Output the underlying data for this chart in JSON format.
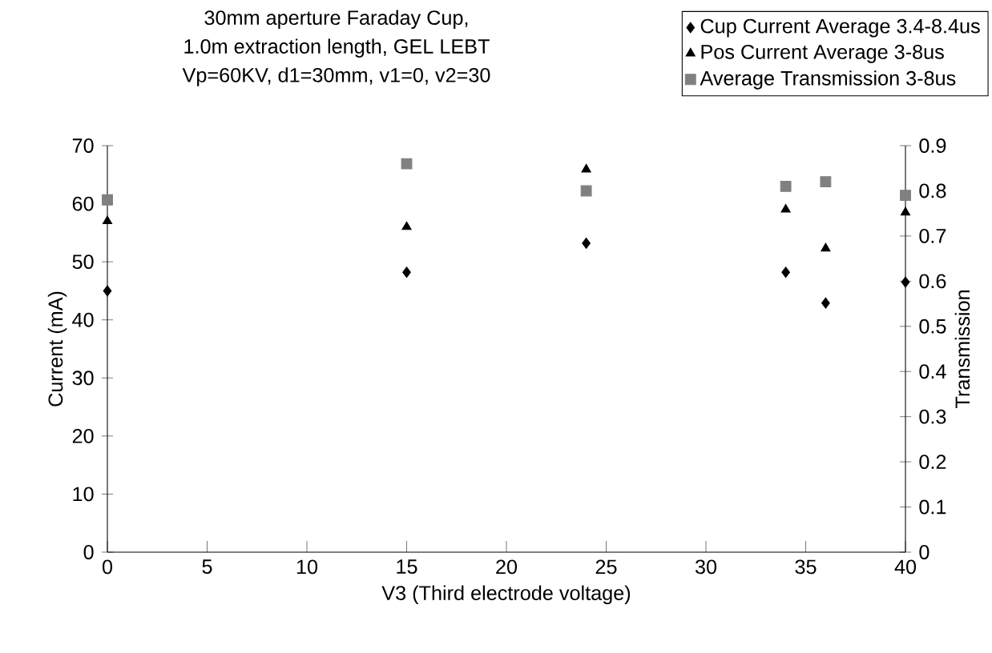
{
  "chart_data": {
    "type": "scatter",
    "title": "30mm aperture Faraday Cup,\n1.0m extraction length, GEL LEBT\nVp=60KV, d1=30mm, v1=0, v2=30",
    "xlabel": "V3 (Third electrode voltage)",
    "ylabel": "Current (mA)",
    "y2label": "Transmission",
    "x": [
      0,
      15,
      24,
      34,
      36,
      40
    ],
    "series": [
      {
        "name": "Cup Current Average 3.4-8.4us",
        "color": "#000000",
        "marker": "diamond",
        "values": [
          45,
          48.2,
          53.2,
          48.2,
          42.9,
          46.5
        ]
      },
      {
        "name": "Pos Current Average 3-8us",
        "color": "#000000",
        "marker": "triangle",
        "values": [
          57,
          56,
          65.9,
          59,
          52.3,
          58.5
        ]
      },
      {
        "name": "Average Transmission 3-8us",
        "color": "#808080",
        "marker": "square",
        "axis": "y2",
        "values": [
          0.78,
          0.86,
          0.8,
          0.81,
          0.82,
          0.79
        ]
      }
    ],
    "xlim": [
      0,
      40
    ],
    "xticks": [
      0,
      5,
      10,
      15,
      20,
      25,
      30,
      35,
      40
    ],
    "ylim": [
      0,
      70
    ],
    "yticks": [
      0,
      10,
      20,
      30,
      40,
      50,
      60,
      70
    ],
    "y2lim": [
      0,
      0.9
    ],
    "y2ticks": [
      0,
      0.1,
      0.2,
      0.3,
      0.4,
      0.5,
      0.6,
      0.7,
      0.8,
      0.9
    ],
    "grid": false,
    "legend": "top right"
  }
}
